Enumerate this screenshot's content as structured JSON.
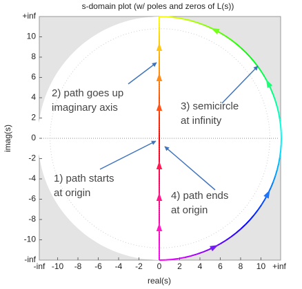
{
  "chart_data": {
    "type": "contour",
    "title": "s-domain plot (w/ poles and zeros of L(s))",
    "x_label": "real(s)",
    "y_label": "imag(s)",
    "xlim": [
      -11.8,
      11.8
    ],
    "ylim": [
      -12,
      12
    ],
    "x_end_labels": [
      "-inf",
      "+inf"
    ],
    "y_end_labels": [
      "-inf",
      "+inf"
    ],
    "xticks": [
      -10,
      -8,
      -6,
      -4,
      -2,
      0,
      2,
      4,
      6,
      8,
      10
    ],
    "yticks": [
      -10,
      -8,
      -6,
      -4,
      -2,
      0,
      2,
      4,
      6,
      8,
      10
    ],
    "annotations": [
      [
        "1) path starts",
        "at origin"
      ],
      [
        "2) path goes up",
        "imaginary axis"
      ],
      [
        "3) semicircle",
        "at infinity"
      ],
      [
        "4) path ends",
        "at origin"
      ]
    ]
  }
}
